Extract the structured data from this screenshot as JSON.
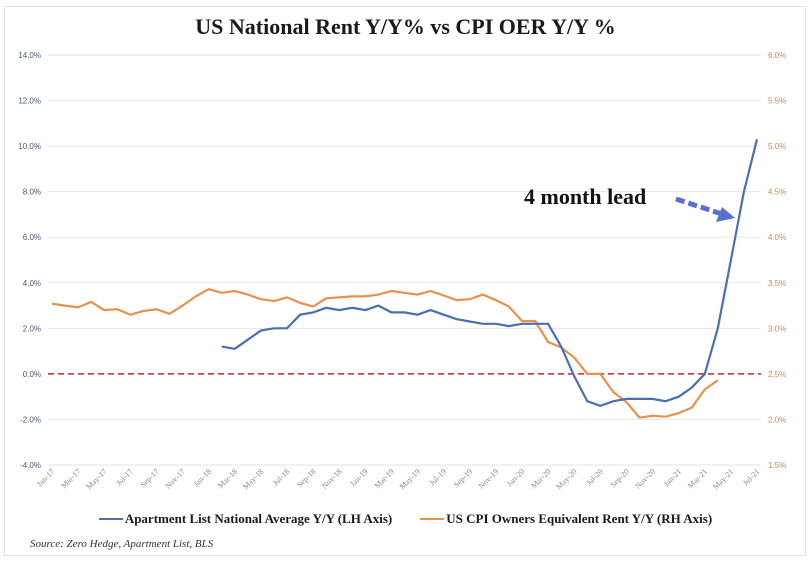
{
  "chart_data": {
    "type": "line",
    "title": "US National Rent Y/Y%  vs CPI OER Y/Y %",
    "x_labels": [
      "Jan-17",
      "Mar-17",
      "May-17",
      "Jul-17",
      "Sep-17",
      "Nov-17",
      "Jan-18",
      "Mar-18",
      "May-18",
      "Jul-18",
      "Sep-18",
      "Nov-18",
      "Jan-19",
      "Mar-19",
      "May-19",
      "Jul-19",
      "Sep-19",
      "Nov-19",
      "Jan-20",
      "Mar-20",
      "May-20",
      "Jul-20",
      "Sep-20",
      "Nov-20",
      "Jan-21",
      "Mar-21",
      "May-21",
      "Jul-21"
    ],
    "left_axis": {
      "ylim": [
        -4,
        14
      ],
      "ticks": [
        "14.0%",
        "12.0%",
        "10.0%",
        "8.0%",
        "6.0%",
        "4.0%",
        "2.0%",
        "0.0%",
        "-2.0%",
        "-4.0%"
      ],
      "tick_values": [
        14,
        12,
        10,
        8,
        6,
        4,
        2,
        0,
        -2,
        -4
      ]
    },
    "right_axis": {
      "ylim": [
        1.5,
        6.0
      ],
      "ticks": [
        "6.0%",
        "5.5%",
        "5.0%",
        "4.5%",
        "4.0%",
        "3.5%",
        "3.0%",
        "2.5%",
        "2.0%",
        "1.5%"
      ],
      "tick_values": [
        6.0,
        5.5,
        5.0,
        4.5,
        4.0,
        3.5,
        3.0,
        2.5,
        2.0,
        1.5
      ]
    },
    "series": [
      {
        "name": "Apartment List  National Average Y/Y (LH Axis)",
        "axis": "left",
        "color": "#4a6fb5",
        "start_month_index": 13,
        "values": [
          1.2,
          1.1,
          1.5,
          1.9,
          2.0,
          2.0,
          2.6,
          2.7,
          2.9,
          2.8,
          2.9,
          2.8,
          3.0,
          2.7,
          2.7,
          2.6,
          2.8,
          2.6,
          2.4,
          2.3,
          2.2,
          2.2,
          2.1,
          2.2,
          2.2,
          2.2,
          1.2,
          -0.1,
          -1.2,
          -1.4,
          -1.2,
          -1.1,
          -1.1,
          -1.1,
          -1.2,
          -1.0,
          -0.6,
          0.0,
          2.0,
          5.0,
          8.0,
          10.3
        ]
      },
      {
        "name": "US CPI Owners Equivalent Rent Y/Y (RH Axis)",
        "axis": "right",
        "color": "#e8914a",
        "start_month_index": 0,
        "values": [
          3.27,
          3.25,
          3.23,
          3.29,
          3.2,
          3.21,
          3.15,
          3.19,
          3.21,
          3.16,
          3.25,
          3.35,
          3.43,
          3.39,
          3.41,
          3.37,
          3.32,
          3.3,
          3.34,
          3.28,
          3.24,
          3.33,
          3.34,
          3.35,
          3.35,
          3.37,
          3.41,
          3.39,
          3.37,
          3.41,
          3.36,
          3.31,
          3.32,
          3.37,
          3.31,
          3.24,
          3.08,
          3.08,
          2.85,
          2.79,
          2.68,
          2.5,
          2.5,
          2.3,
          2.19,
          2.02,
          2.04,
          2.03,
          2.07,
          2.13,
          2.33,
          2.43
        ]
      }
    ],
    "reference_line": {
      "value": 0,
      "axis": "left",
      "color": "#cc2222",
      "style": "dashed"
    },
    "annotation": "4 month lead",
    "grid": true,
    "legend_position": "bottom"
  },
  "legend": {
    "blue": "Apartment List  National Average Y/Y (LH Axis)",
    "orange": "US CPI Owners Equivalent Rent Y/Y (RH Axis)"
  },
  "source": "Source: Zero Hedge, Apartment List, BLS",
  "colors": {
    "blue": "#4a6fb5",
    "orange": "#e8914a",
    "zero_line": "#cc2222",
    "left_tick": "#44577a",
    "right_tick": "#d08a4a"
  }
}
